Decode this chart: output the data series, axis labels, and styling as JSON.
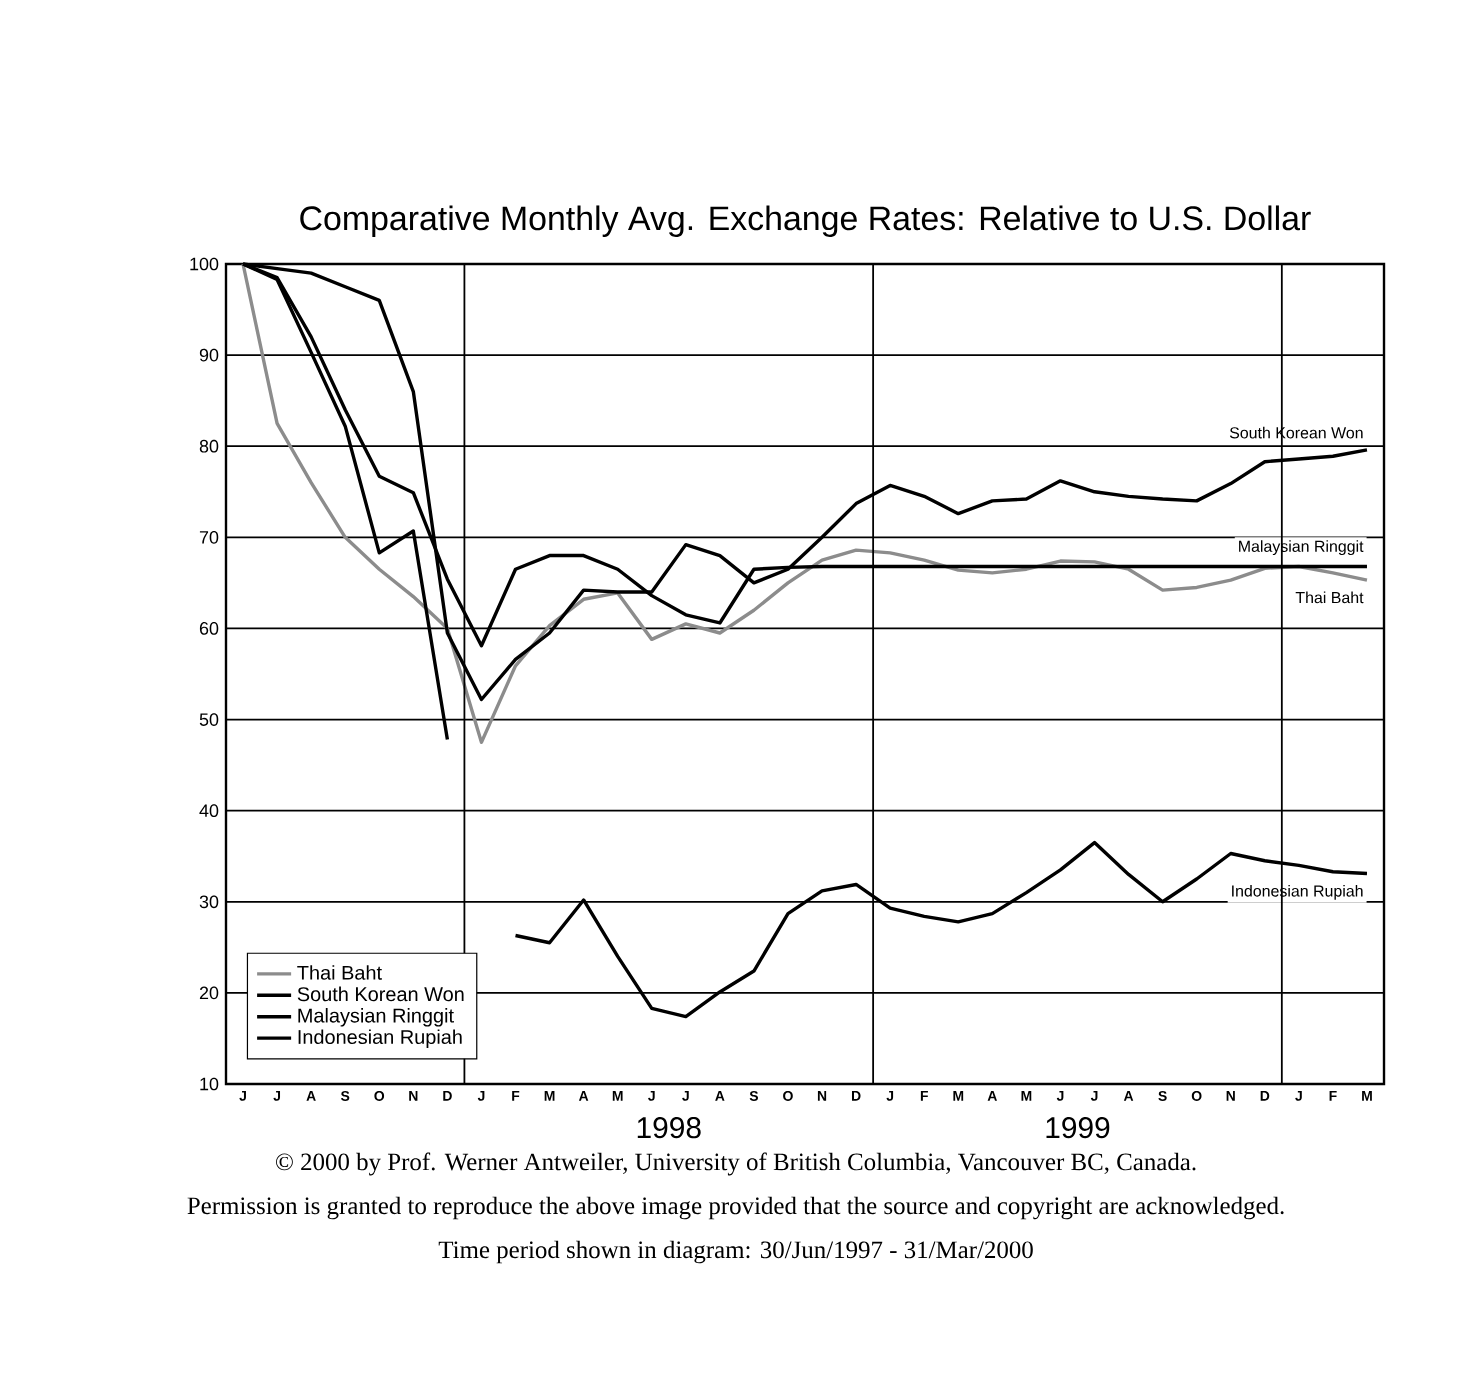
{
  "chart_data": {
    "type": "line",
    "title": "Comparative Monthly Avg. Exchange Rates: Relative to U.S. Dollar",
    "categories": [
      "J",
      "J",
      "A",
      "S",
      "O",
      "N",
      "D",
      "J",
      "F",
      "M",
      "A",
      "M",
      "J",
      "J",
      "A",
      "S",
      "O",
      "N",
      "D",
      "J",
      "F",
      "M",
      "A",
      "M",
      "J",
      "J",
      "A",
      "S",
      "O",
      "N",
      "D",
      "J",
      "F",
      "M"
    ],
    "series": [
      {
        "name": "Thai Baht",
        "color": "#8c8c8c",
        "values": [
          100,
          82.5,
          76,
          70,
          66.5,
          63.5,
          60,
          47.5,
          55.9,
          60.3,
          63.2,
          63.9,
          58.8,
          60.5,
          59.5,
          62,
          65,
          67.5,
          68.6,
          68.3,
          67.5,
          66.4,
          66.1,
          66.5,
          67.4,
          67.3,
          66.5,
          64.2,
          64.5,
          65.3,
          66.6,
          66.8,
          66.1,
          65.3
        ]
      },
      {
        "name": "South Korean Won",
        "color": "#000000",
        "values": [
          100,
          99.5,
          99,
          97.5,
          96,
          86,
          59.5,
          52.2,
          56.6,
          59.5,
          64.2,
          64,
          64,
          69.2,
          68,
          65,
          66.5,
          70,
          73.7,
          75.7,
          74.5,
          72.6,
          74,
          74.2,
          76.2,
          75,
          74.5,
          74.2,
          74,
          75.9,
          78.3,
          78.6,
          78.9,
          79.6
        ]
      },
      {
        "name": "Malaysian Ringgit",
        "color": "#000000",
        "values": [
          100,
          98.5,
          92,
          84,
          76.7,
          74.9,
          65.4,
          58.1,
          66.5,
          68,
          68,
          66.5,
          63.6,
          61.5,
          60.6,
          66.5,
          66.7,
          66.8,
          66.8,
          66.8,
          66.8,
          66.8,
          66.8,
          66.8,
          66.8,
          66.8,
          66.8,
          66.8,
          66.8,
          66.8,
          66.8,
          66.8,
          66.8,
          66.8
        ]
      },
      {
        "name": "Indonesian Rupiah",
        "color": "#000000",
        "values": [
          100,
          98.3,
          90.3,
          82.2,
          68.3,
          70.7,
          47.8,
          null,
          26.3,
          25.5,
          30.2,
          24,
          18.3,
          17.4,
          20.1,
          22.4,
          28.7,
          31.2,
          31.9,
          29.3,
          28.4,
          27.8,
          28.7,
          31,
          33.5,
          36.5,
          33,
          30,
          32.5,
          35.3,
          34.5,
          34,
          33.3,
          33.1
        ]
      }
    ],
    "ylim": [
      10,
      100
    ],
    "yticks": [
      10,
      20,
      30,
      40,
      50,
      60,
      70,
      80,
      90,
      100
    ],
    "grid": "y",
    "legend": "bottom left",
    "annotations": [
      "1998",
      "1999",
      "© 2000 by Prof. Werner Antweiler, University of British Columbia, Vancouver BC, Canada.",
      "Permission is granted to reproduce the above image provided that the source and copyright are acknowledged.",
      "Time period shown in diagram: 30/Jun/1997 - 31/Mar/2000"
    ]
  }
}
